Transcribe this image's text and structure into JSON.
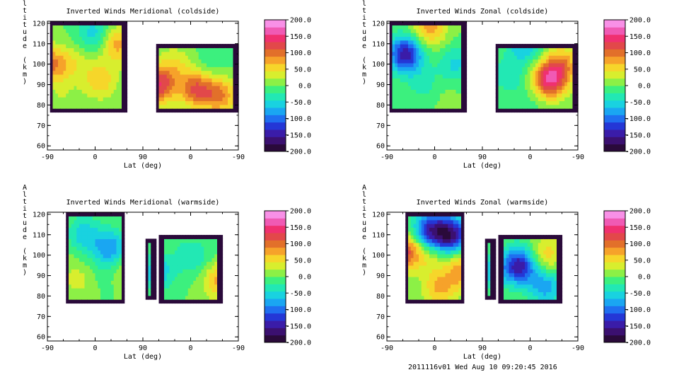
{
  "footer": "2011116v01 Wed Aug 10 09:20:45 2016",
  "colorbar": {
    "labels": [
      "200.0",
      "150.0",
      "100.0",
      "50.0",
      "0.0",
      "-50.0",
      "-100.0",
      "-150.0",
      "-200.0"
    ],
    "colors": [
      "#2a0a3a",
      "#3b1070",
      "#3a1ca8",
      "#2437d6",
      "#1f6ff0",
      "#1aa6f2",
      "#19d2e0",
      "#22e8b4",
      "#3cf07e",
      "#8cf046",
      "#d8ee2e",
      "#f6d62a",
      "#f6a22a",
      "#e2702a",
      "#e2484a",
      "#f03070",
      "#f05ab4",
      "#f890e6"
    ]
  },
  "chart_data": [
    {
      "type": "heatmap",
      "title": "Inverted Winds Meridional (coldside)",
      "xlabel": "Lat (deg)",
      "ylabel": "Altitude (km)",
      "x_ticks": [
        "-90",
        "0",
        "90",
        "0",
        "-90"
      ],
      "y_ticks": [
        "60",
        "70",
        "80",
        "90",
        "100",
        "110",
        "120"
      ],
      "ylim": [
        58,
        121
      ],
      "clim": [
        -200,
        200
      ],
      "blobs": [
        {
          "lat": -80,
          "alt": 100,
          "value": 90
        },
        {
          "lat": -35,
          "alt": 100,
          "value": 30
        },
        {
          "lat": 10,
          "alt": 92,
          "value": 60
        },
        {
          "lat": 40,
          "alt": 110,
          "value": 80
        },
        {
          "lat": 0,
          "alt": 115,
          "value": -60
        },
        {
          "lat": -60,
          "alt": 82,
          "value": 20
        },
        {
          "lat": 120,
          "alt": 90,
          "value": 130
        },
        {
          "lat": 150,
          "alt": 100,
          "value": 40
        },
        {
          "lat": 190,
          "alt": 88,
          "value": 110
        },
        {
          "lat": 235,
          "alt": 85,
          "value": 90
        },
        {
          "lat": 220,
          "alt": 100,
          "value": -20
        }
      ],
      "lobes": [
        {
          "x0": -85,
          "x1": 58,
          "kind": "full"
        },
        {
          "x0": 115,
          "x1": 268,
          "kind": "mid"
        }
      ]
    },
    {
      "type": "heatmap",
      "title": "Inverted Winds Zonal (coldside)",
      "xlabel": "Lat (deg)",
      "ylabel": "Altitude (km)",
      "x_ticks": [
        "-90",
        "0",
        "90",
        "0",
        "-90"
      ],
      "y_ticks": [
        "60",
        "70",
        "80",
        "90",
        "100",
        "110",
        "120"
      ],
      "ylim": [
        58,
        121
      ],
      "clim": [
        -200,
        200
      ],
      "blobs": [
        {
          "lat": -10,
          "alt": 118,
          "value": 80
        },
        {
          "lat": -55,
          "alt": 105,
          "value": -150
        },
        {
          "lat": -20,
          "alt": 90,
          "value": -30
        },
        {
          "lat": 40,
          "alt": 100,
          "value": -50
        },
        {
          "lat": 20,
          "alt": 85,
          "value": 10
        },
        {
          "lat": 140,
          "alt": 95,
          "value": -40
        },
        {
          "lat": 170,
          "alt": 110,
          "value": -70
        },
        {
          "lat": 215,
          "alt": 92,
          "value": 150
        },
        {
          "lat": 240,
          "alt": 100,
          "value": 80
        },
        {
          "lat": 190,
          "alt": 85,
          "value": -20
        }
      ],
      "lobes": [
        {
          "x0": -85,
          "x1": 58,
          "kind": "full"
        },
        {
          "x0": 115,
          "x1": 268,
          "kind": "mid"
        }
      ]
    },
    {
      "type": "heatmap",
      "title": "Inverted Winds Meridional (warmside)",
      "xlabel": "Lat (deg)",
      "ylabel": "Altitude (km)",
      "x_ticks": [
        "-90",
        "0",
        "90",
        "0",
        "-90"
      ],
      "y_ticks": [
        "60",
        "70",
        "80",
        "90",
        "100",
        "110",
        "120"
      ],
      "ylim": [
        58,
        121
      ],
      "clim": [
        -200,
        200
      ],
      "blobs": [
        {
          "lat": -20,
          "alt": 110,
          "value": -60
        },
        {
          "lat": 30,
          "alt": 103,
          "value": -90
        },
        {
          "lat": -30,
          "alt": 88,
          "value": 30
        },
        {
          "lat": 60,
          "alt": 95,
          "value": 40
        },
        {
          "lat": -60,
          "alt": 100,
          "value": 10
        },
        {
          "lat": 10,
          "alt": 90,
          "value": -10
        },
        {
          "lat": 115,
          "alt": 92,
          "value": -70
        },
        {
          "lat": 180,
          "alt": 100,
          "value": -40
        },
        {
          "lat": 235,
          "alt": 88,
          "value": 80
        },
        {
          "lat": 210,
          "alt": 95,
          "value": -10
        }
      ],
      "lobes": [
        {
          "x0": -55,
          "x1": 55,
          "kind": "full"
        },
        {
          "x0": 93,
          "x1": 113,
          "kind": "small"
        },
        {
          "x0": 122,
          "x1": 238,
          "kind": "mid"
        }
      ]
    },
    {
      "type": "heatmap",
      "title": "Inverted Winds Zonal (warmside)",
      "xlabel": "Lat (deg)",
      "ylabel": "Altitude (km)",
      "x_ticks": [
        "-90",
        "0",
        "90",
        "0",
        "-90"
      ],
      "y_ticks": [
        "60",
        "70",
        "80",
        "90",
        "100",
        "110",
        "120"
      ],
      "ylim": [
        58,
        121
      ],
      "clim": [
        -200,
        200
      ],
      "blobs": [
        {
          "lat": -60,
          "alt": 102,
          "value": 130
        },
        {
          "lat": -10,
          "alt": 112,
          "value": -130
        },
        {
          "lat": 30,
          "alt": 110,
          "value": -160
        },
        {
          "lat": 55,
          "alt": 93,
          "value": 90
        },
        {
          "lat": -10,
          "alt": 100,
          "value": 40
        },
        {
          "lat": 10,
          "alt": 84,
          "value": 70
        },
        {
          "lat": 100,
          "alt": 92,
          "value": -60
        },
        {
          "lat": 160,
          "alt": 95,
          "value": -150
        },
        {
          "lat": 210,
          "alt": 100,
          "value": 60
        },
        {
          "lat": 210,
          "alt": 85,
          "value": -80
        }
      ],
      "lobes": [
        {
          "x0": -55,
          "x1": 55,
          "kind": "full"
        },
        {
          "x0": 93,
          "x1": 113,
          "kind": "small"
        },
        {
          "x0": 122,
          "x1": 238,
          "kind": "mid"
        }
      ]
    }
  ]
}
